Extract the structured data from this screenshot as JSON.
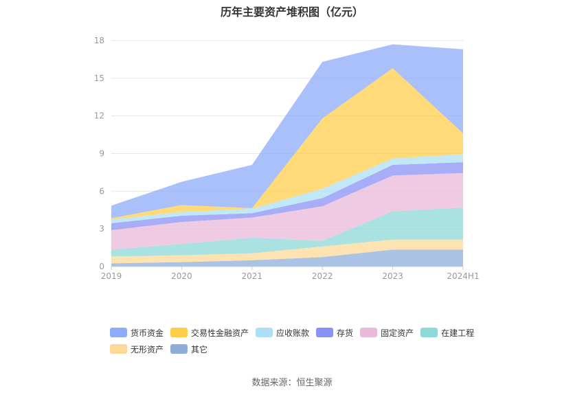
{
  "chart_data": {
    "type": "area",
    "title": "历年主要资产堆积图（亿元）",
    "categories": [
      "2019",
      "2020",
      "2021",
      "2022",
      "2023",
      "2024H1"
    ],
    "yticks": [
      "0",
      "3",
      "6",
      "9",
      "12",
      "15",
      "18"
    ],
    "ylim": [
      0,
      18
    ],
    "stacked": true,
    "grid": true,
    "legend_position": "bottom",
    "series": [
      {
        "name": "其它",
        "color": "#8eaed9",
        "values": [
          0.25,
          0.35,
          0.5,
          0.75,
          1.35,
          1.35
        ]
      },
      {
        "name": "无形资产",
        "color": "#fdd998",
        "values": [
          0.55,
          0.55,
          0.55,
          0.85,
          0.8,
          0.8
        ]
      },
      {
        "name": "在建工程",
        "color": "#8ed8d8",
        "values": [
          0.55,
          0.9,
          1.25,
          0.45,
          2.25,
          2.55
        ]
      },
      {
        "name": "固定资产",
        "color": "#eab9da",
        "values": [
          1.55,
          1.75,
          1.6,
          2.75,
          2.85,
          2.75
        ]
      },
      {
        "name": "存货",
        "color": "#8b92f5",
        "values": [
          0.55,
          0.5,
          0.35,
          0.65,
          0.85,
          0.85
        ]
      },
      {
        "name": "应收账款",
        "color": "#ade0f6",
        "values": [
          0.3,
          0.3,
          0.35,
          0.75,
          0.5,
          0.65
        ]
      },
      {
        "name": "交易性金融资产",
        "color": "#fecd4b",
        "values": [
          0.1,
          0.55,
          0.05,
          5.6,
          7.2,
          1.65
        ]
      },
      {
        "name": "货币资金",
        "color": "#8eabf9",
        "values": [
          1.0,
          1.85,
          3.45,
          4.5,
          1.9,
          6.7
        ]
      }
    ],
    "legend_order": [
      "货币资金",
      "交易性金融资产",
      "应收账款",
      "存货",
      "固定资产",
      "在建工程",
      "无形资产",
      "其它"
    ]
  },
  "legend": {
    "row1": [
      "货币资金",
      "交易性金融资产",
      "应收账款",
      "存货",
      "固定资产",
      "在建工程"
    ],
    "row2": [
      "无形资产",
      "其它"
    ]
  },
  "source": "数据来源：恒生聚源"
}
